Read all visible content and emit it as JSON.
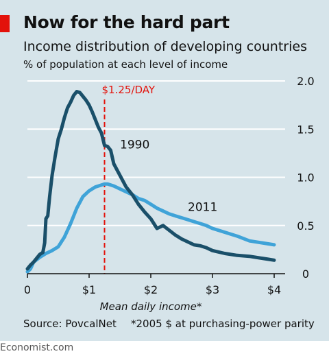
{
  "header": {
    "title": "Now for the hard part",
    "subtitle": "Income distribution of developing countries",
    "unit_label": "% of population at each level of income"
  },
  "footer": {
    "source": "Source: PovcalNet",
    "note": "*2005 $ at purchasing-power parity",
    "brand": "Economist.com"
  },
  "chart_data": {
    "type": "line",
    "title": "Now for the hard part",
    "subtitle": "Income distribution of developing countries",
    "ylabel": "% of population at each level of income",
    "xlabel": "Mean daily income*",
    "xlim": [
      0,
      4
    ],
    "ylim": [
      0,
      2
    ],
    "x_ticks": [
      0,
      1,
      2,
      3,
      4
    ],
    "x_tick_labels": [
      "0",
      "$1",
      "$2",
      "$3",
      "$4"
    ],
    "y_ticks": [
      0,
      0.5,
      1,
      1.5,
      2
    ],
    "y_tick_labels": [
      "0",
      "0.5",
      "1.0",
      "1.5",
      "2.0"
    ],
    "grid": "horizontal",
    "reference_line": {
      "x": 1.25,
      "label": "$1.25/DAY",
      "color": "#e3120b"
    },
    "series": [
      {
        "name": "1990",
        "color": "#1a4f69",
        "x": [
          0,
          0.05,
          0.1,
          0.15,
          0.2,
          0.25,
          0.28,
          0.3,
          0.33,
          0.36,
          0.4,
          0.45,
          0.5,
          0.55,
          0.6,
          0.65,
          0.7,
          0.75,
          0.8,
          0.85,
          0.9,
          0.95,
          1.0,
          1.05,
          1.1,
          1.15,
          1.2,
          1.25,
          1.3,
          1.35,
          1.4,
          1.5,
          1.6,
          1.7,
          1.8,
          1.9,
          2.0,
          2.1,
          2.2,
          2.3,
          2.4,
          2.5,
          2.6,
          2.7,
          2.8,
          2.9,
          3.0,
          3.2,
          3.4,
          3.6,
          3.7,
          3.8,
          3.9,
          4.0
        ],
        "values": [
          0.05,
          0.09,
          0.12,
          0.16,
          0.2,
          0.22,
          0.32,
          0.57,
          0.6,
          0.8,
          1.02,
          1.22,
          1.4,
          1.5,
          1.62,
          1.72,
          1.78,
          1.85,
          1.89,
          1.88,
          1.84,
          1.8,
          1.75,
          1.68,
          1.6,
          1.52,
          1.46,
          1.33,
          1.32,
          1.28,
          1.14,
          1.02,
          0.9,
          0.82,
          0.72,
          0.64,
          0.57,
          0.47,
          0.5,
          0.45,
          0.4,
          0.36,
          0.33,
          0.3,
          0.29,
          0.27,
          0.24,
          0.21,
          0.19,
          0.18,
          0.17,
          0.16,
          0.15,
          0.14
        ]
      },
      {
        "name": "2011",
        "color": "#3fa3d8",
        "x": [
          0,
          0.05,
          0.1,
          0.2,
          0.3,
          0.4,
          0.5,
          0.55,
          0.6,
          0.7,
          0.8,
          0.9,
          1.0,
          1.1,
          1.2,
          1.25,
          1.3,
          1.4,
          1.5,
          1.6,
          1.7,
          1.8,
          1.9,
          2.0,
          2.1,
          2.2,
          2.3,
          2.4,
          2.5,
          2.6,
          2.7,
          2.8,
          2.9,
          3.0,
          3.2,
          3.4,
          3.6,
          3.8,
          4.0
        ],
        "values": [
          0.02,
          0.05,
          0.12,
          0.17,
          0.21,
          0.24,
          0.28,
          0.33,
          0.38,
          0.52,
          0.68,
          0.8,
          0.86,
          0.9,
          0.92,
          0.93,
          0.93,
          0.91,
          0.88,
          0.85,
          0.82,
          0.78,
          0.76,
          0.72,
          0.68,
          0.65,
          0.62,
          0.6,
          0.58,
          0.56,
          0.54,
          0.52,
          0.5,
          0.47,
          0.43,
          0.39,
          0.34,
          0.32,
          0.3
        ]
      }
    ],
    "series_labels": [
      {
        "series": "1990",
        "text": "1990",
        "x": 1.5,
        "y": 1.3
      },
      {
        "series": "2011",
        "text": "2011",
        "x": 2.6,
        "y": 0.65
      }
    ]
  }
}
